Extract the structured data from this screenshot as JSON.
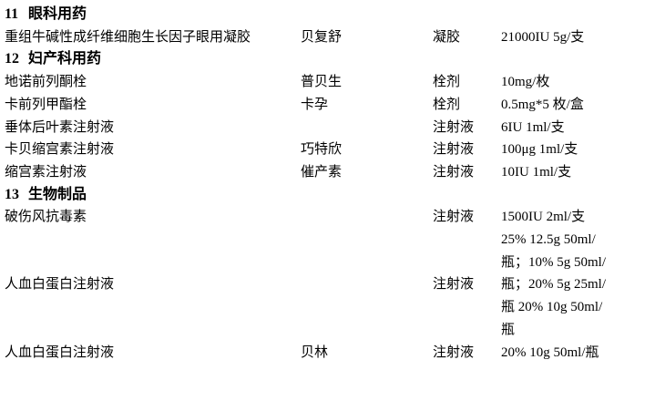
{
  "sections": [
    {
      "number": "11",
      "title": "眼科用药",
      "rows": [
        {
          "name": "重组牛碱性成纤维细胞生长因子眼用凝胶",
          "brand": "贝复舒",
          "form": "凝胶",
          "spec": [
            "21000IU 5g/支"
          ]
        }
      ]
    },
    {
      "number": "12",
      "title": "妇产科用药",
      "rows": [
        {
          "name": "地诺前列酮栓",
          "brand": "普贝生",
          "form": "栓剂",
          "spec": [
            "10mg/枚"
          ]
        },
        {
          "name": "卡前列甲酯栓",
          "brand": "卡孕",
          "form": "栓剂",
          "spec": [
            "0.5mg*5 枚/盒"
          ]
        },
        {
          "name": "垂体后叶素注射液",
          "brand": "",
          "form": "注射液",
          "spec": [
            "6IU 1ml/支"
          ]
        },
        {
          "name": "卡贝缩宫素注射液",
          "brand": "巧特欣",
          "form": "注射液",
          "spec": [
            "100μg 1ml/支"
          ]
        },
        {
          "name": "缩宫素注射液",
          "brand": "催产素",
          "form": "注射液",
          "spec": [
            "10IU 1ml/支"
          ]
        }
      ]
    },
    {
      "number": "13",
      "title": "生物制品",
      "rows": [
        {
          "name": "破伤风抗毒素",
          "brand": "",
          "form": "注射液",
          "spec": [
            "1500IU 2ml/支"
          ]
        },
        {
          "name": "人血白蛋白注射液",
          "brand": "",
          "form": "注射液",
          "spec": [
            "25% 12.5g 50ml/",
            "瓶；10% 5g 50ml/",
            "瓶；20% 5g 25ml/",
            "瓶 20% 10g 50ml/",
            "瓶"
          ]
        },
        {
          "name": "人血白蛋白注射液",
          "brand": "贝林",
          "form": "注射液",
          "spec": [
            "20% 10g 50ml/瓶"
          ]
        }
      ]
    }
  ]
}
